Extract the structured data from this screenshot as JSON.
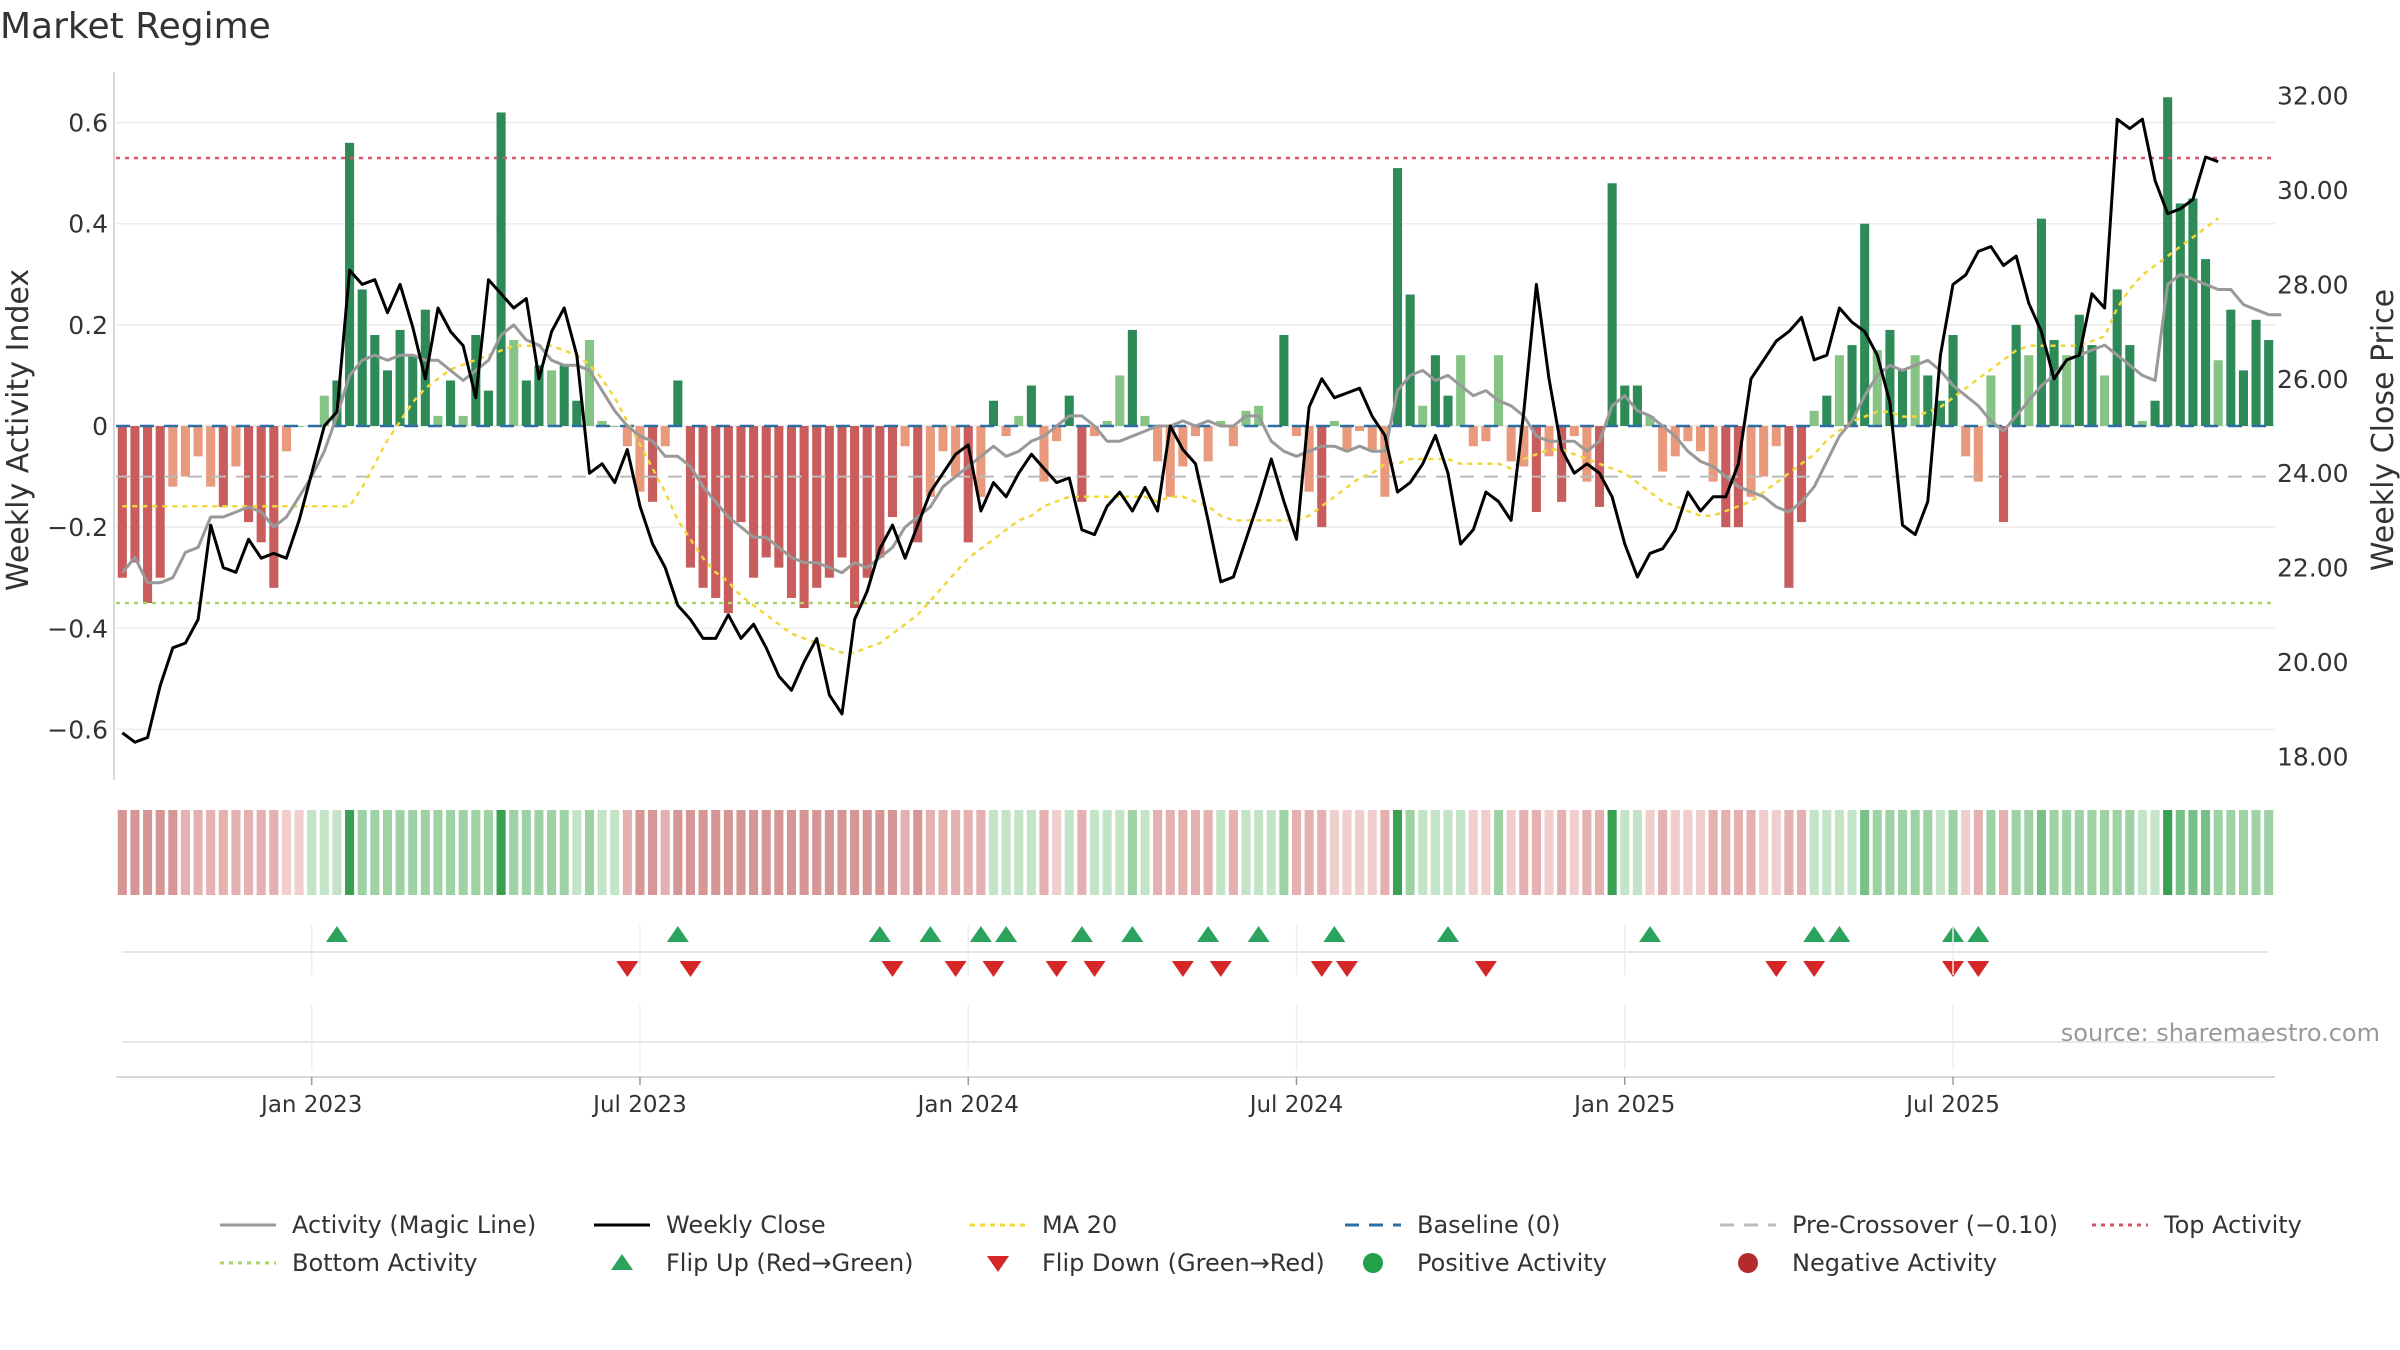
{
  "chart_data": {
    "type": "bar",
    "title": "Market Regime",
    "ylabel": "Weekly Activity Index",
    "y2label": "Weekly Close Price",
    "source": "source: sharemaestro.com",
    "ylim": [
      -0.7,
      0.7
    ],
    "y2lim": [
      17.5,
      32.5
    ],
    "yticks": [
      {
        "value": 0.6,
        "label": "0.6"
      },
      {
        "value": 0.4,
        "label": "0.4"
      },
      {
        "value": 0.2,
        "label": "0.2"
      },
      {
        "value": 0,
        "label": "0"
      },
      {
        "value": -0.2,
        "label": "−0.2"
      },
      {
        "value": -0.4,
        "label": "−0.4"
      },
      {
        "value": -0.6,
        "label": "−0.6"
      }
    ],
    "y2ticks": [
      {
        "value": 32,
        "label": "32.00"
      },
      {
        "value": 30,
        "label": "30.00"
      },
      {
        "value": 28,
        "label": "28.00"
      },
      {
        "value": 26,
        "label": "26.00"
      },
      {
        "value": 24,
        "label": "24.00"
      },
      {
        "value": 22,
        "label": "22.00"
      },
      {
        "value": 20,
        "label": "20.00"
      },
      {
        "value": 18,
        "label": "18.00"
      }
    ],
    "xticks": [
      {
        "week": 15,
        "label": "Jan 2023"
      },
      {
        "week": 41,
        "label": "Jul 2023"
      },
      {
        "week": 67,
        "label": "Jan 2024"
      },
      {
        "week": 93,
        "label": "Jul 2024"
      },
      {
        "week": 119,
        "label": "Jan 2025"
      },
      {
        "week": 145,
        "label": "Jul 2025"
      }
    ],
    "thresholds": {
      "top": 0.53,
      "bottom": -0.35,
      "pre_crossover": -0.1,
      "baseline": 0
    },
    "activity": [
      -0.3,
      -0.27,
      -0.35,
      -0.3,
      -0.12,
      -0.1,
      -0.06,
      -0.12,
      -0.16,
      -0.08,
      -0.19,
      -0.23,
      -0.32,
      -0.05,
      0.0,
      0.0,
      0.06,
      0.09,
      0.56,
      0.27,
      0.18,
      0.11,
      0.19,
      0.14,
      0.23,
      0.02,
      0.09,
      0.02,
      0.18,
      0.07,
      0.62,
      0.17,
      0.09,
      0.12,
      0.11,
      0.12,
      0.05,
      0.17,
      0.01,
      0.0,
      -0.04,
      -0.13,
      -0.15,
      -0.04,
      0.09,
      -0.28,
      -0.32,
      -0.34,
      -0.37,
      -0.19,
      -0.3,
      -0.26,
      -0.28,
      -0.34,
      -0.36,
      -0.32,
      -0.3,
      -0.26,
      -0.36,
      -0.3,
      -0.26,
      -0.18,
      -0.04,
      -0.23,
      -0.14,
      -0.05,
      -0.1,
      -0.23,
      -0.14,
      0.05,
      -0.02,
      0.02,
      0.08,
      -0.11,
      -0.03,
      0.06,
      -0.15,
      -0.02,
      0.01,
      0.1,
      0.19,
      0.02,
      -0.07,
      -0.14,
      -0.08,
      -0.02,
      -0.07,
      0.01,
      -0.04,
      0.03,
      0.04,
      0.0,
      0.18,
      -0.02,
      -0.13,
      -0.2,
      0.01,
      -0.05,
      -0.01,
      -0.05,
      -0.14,
      0.51,
      0.26,
      0.04,
      0.14,
      0.06,
      0.14,
      -0.04,
      -0.03,
      0.14,
      -0.07,
      -0.08,
      -0.17,
      -0.06,
      -0.15,
      -0.02,
      -0.11,
      -0.16,
      0.48,
      0.08,
      0.08,
      0.02,
      -0.09,
      -0.06,
      -0.03,
      -0.05,
      -0.11,
      -0.2,
      -0.2,
      -0.14,
      -0.1,
      -0.04,
      -0.32,
      -0.19,
      0.03,
      0.06,
      0.14,
      0.16,
      0.4,
      0.15,
      0.19,
      0.11,
      0.14,
      0.1,
      0.05,
      0.18,
      -0.06,
      -0.11,
      0.1,
      -0.19,
      0.2,
      0.14,
      0.41,
      0.17,
      0.14,
      0.22,
      0.16,
      0.1,
      0.27,
      0.16,
      0.01,
      0.05,
      0.65,
      0.44,
      0.45,
      0.33,
      0.13,
      0.23,
      0.11,
      0.21,
      0.17
    ],
    "weekly_close": [
      18.5,
      18.3,
      18.4,
      19.5,
      20.3,
      20.4,
      20.9,
      22.9,
      22.0,
      21.9,
      22.6,
      22.2,
      22.3,
      22.2,
      23.0,
      24.0,
      25.0,
      25.3,
      28.3,
      28.0,
      28.1,
      27.4,
      28.0,
      27.1,
      26.0,
      27.5,
      27.0,
      26.7,
      25.6,
      28.1,
      27.8,
      27.5,
      27.7,
      26.0,
      27.0,
      27.5,
      26.5,
      24.0,
      24.2,
      23.8,
      24.5,
      23.3,
      22.5,
      22.0,
      21.2,
      20.9,
      20.5,
      20.5,
      21.0,
      20.5,
      20.8,
      20.3,
      19.7,
      19.4,
      20.0,
      20.5,
      19.3,
      18.9,
      20.9,
      21.5,
      22.4,
      22.9,
      22.2,
      22.9,
      23.6,
      24.0,
      24.4,
      24.6,
      23.2,
      23.8,
      23.5,
      24.0,
      24.4,
      24.1,
      23.8,
      23.9,
      22.8,
      22.7,
      23.3,
      23.6,
      23.2,
      23.7,
      23.2,
      25.0,
      24.5,
      24.2,
      23.0,
      21.7,
      21.8,
      22.6,
      23.4,
      24.3,
      23.4,
      22.6,
      25.4,
      26.0,
      25.6,
      25.7,
      25.8,
      25.2,
      24.8,
      23.6,
      23.8,
      24.2,
      24.8,
      24.0,
      22.5,
      22.8,
      23.6,
      23.4,
      23.0,
      25.3,
      28.0,
      26.0,
      24.5,
      24.0,
      24.2,
      24.0,
      23.5,
      22.5,
      21.8,
      22.3,
      22.4,
      22.8,
      23.6,
      23.2,
      23.5,
      23.5,
      24.2,
      26.0,
      26.4,
      26.8,
      27.0,
      27.3,
      26.4,
      26.5,
      27.5,
      27.2,
      27.0,
      26.5,
      25.5,
      22.9,
      22.7,
      23.4,
      26.5,
      28.0,
      28.2,
      28.7,
      28.8,
      28.4,
      28.6,
      27.6,
      27.0,
      26.0,
      26.4,
      26.5,
      27.8,
      27.5,
      31.5,
      31.3,
      31.5,
      30.2,
      29.5,
      29.6,
      29.8,
      30.7,
      30.6
    ],
    "magic_line": [
      -0.29,
      -0.26,
      -0.31,
      -0.31,
      -0.3,
      -0.25,
      -0.24,
      -0.18,
      -0.18,
      -0.17,
      -0.16,
      -0.17,
      -0.2,
      -0.18,
      -0.14,
      -0.1,
      -0.05,
      0.02,
      0.1,
      0.13,
      0.14,
      0.13,
      0.14,
      0.14,
      0.13,
      0.13,
      0.11,
      0.09,
      0.11,
      0.13,
      0.18,
      0.2,
      0.17,
      0.16,
      0.13,
      0.12,
      0.12,
      0.11,
      0.07,
      0.03,
      0.0,
      -0.02,
      -0.03,
      -0.06,
      -0.06,
      -0.08,
      -0.12,
      -0.15,
      -0.18,
      -0.2,
      -0.22,
      -0.22,
      -0.24,
      -0.26,
      -0.27,
      -0.27,
      -0.28,
      -0.29,
      -0.27,
      -0.28,
      -0.26,
      -0.24,
      -0.2,
      -0.18,
      -0.16,
      -0.12,
      -0.1,
      -0.08,
      -0.06,
      -0.04,
      -0.06,
      -0.05,
      -0.03,
      -0.02,
      0.0,
      0.02,
      0.02,
      0.0,
      -0.03,
      -0.03,
      -0.02,
      -0.01,
      0.0,
      0.0,
      0.01,
      0.0,
      0.01,
      0.0,
      0.0,
      0.02,
      0.02,
      -0.03,
      -0.05,
      -0.06,
      -0.05,
      -0.04,
      -0.04,
      -0.05,
      -0.04,
      -0.05,
      -0.05,
      0.07,
      0.1,
      0.11,
      0.09,
      0.1,
      0.08,
      0.06,
      0.07,
      0.05,
      0.04,
      0.02,
      -0.02,
      -0.03,
      -0.03,
      -0.03,
      -0.05,
      -0.03,
      0.04,
      0.06,
      0.03,
      0.02,
      0.0,
      -0.02,
      -0.05,
      -0.07,
      -0.08,
      -0.1,
      -0.12,
      -0.13,
      -0.14,
      -0.16,
      -0.17,
      -0.15,
      -0.12,
      -0.07,
      -0.02,
      0.01,
      0.06,
      0.1,
      0.12,
      0.11,
      0.12,
      0.13,
      0.11,
      0.08,
      0.06,
      0.04,
      0.01,
      -0.01,
      0.02,
      0.05,
      0.08,
      0.1,
      0.13,
      0.14,
      0.15,
      0.16,
      0.14,
      0.12,
      0.1,
      0.09,
      0.28,
      0.3,
      0.29,
      0.28,
      0.27,
      0.27,
      0.24,
      0.23,
      0.22,
      0.22
    ],
    "ma20": [
      23.3,
      23.3,
      23.3,
      23.3,
      23.3,
      23.3,
      23.3,
      23.3,
      23.3,
      23.3,
      23.3,
      23.3,
      23.3,
      23.3,
      23.3,
      23.3,
      23.3,
      23.3,
      23.3,
      23.7,
      24.2,
      24.7,
      25.1,
      25.5,
      25.8,
      26.0,
      26.2,
      26.3,
      26.4,
      26.5,
      26.6,
      26.7,
      26.7,
      26.7,
      26.7,
      26.6,
      26.5,
      26.3,
      26.0,
      25.6,
      25.1,
      24.6,
      24.1,
      23.6,
      23.0,
      22.6,
      22.2,
      21.9,
      21.7,
      21.4,
      21.2,
      21.0,
      20.8,
      20.6,
      20.5,
      20.4,
      20.3,
      20.2,
      20.2,
      20.3,
      20.4,
      20.6,
      20.8,
      21.0,
      21.3,
      21.6,
      21.9,
      22.2,
      22.4,
      22.6,
      22.8,
      23.0,
      23.1,
      23.3,
      23.4,
      23.5,
      23.5,
      23.5,
      23.5,
      23.5,
      23.5,
      23.5,
      23.4,
      23.5,
      23.5,
      23.4,
      23.3,
      23.1,
      23.0,
      23.0,
      23.0,
      23.0,
      23.0,
      23.0,
      23.1,
      23.3,
      23.5,
      23.7,
      23.9,
      24.0,
      24.2,
      24.2,
      24.3,
      24.3,
      24.3,
      24.3,
      24.2,
      24.2,
      24.2,
      24.2,
      24.1,
      24.3,
      24.4,
      24.5,
      24.5,
      24.4,
      24.3,
      24.2,
      24.1,
      24.0,
      23.8,
      23.6,
      23.4,
      23.3,
      23.2,
      23.1,
      23.1,
      23.2,
      23.3,
      23.4,
      23.6,
      23.8,
      24.0,
      24.2,
      24.4,
      24.7,
      24.9,
      25.1,
      25.2,
      25.3,
      25.3,
      25.2,
      25.2,
      25.3,
      25.4,
      25.6,
      25.8,
      26.0,
      26.2,
      26.4,
      26.6,
      26.7,
      26.7,
      26.7,
      26.7,
      26.7,
      26.8,
      26.9,
      27.5,
      27.9,
      28.2,
      28.4,
      28.6,
      28.8,
      29.0,
      29.2,
      29.4
    ],
    "regime_strip": [
      -0.35,
      -0.33,
      -0.35,
      -0.33,
      -0.32,
      -0.3,
      -0.3,
      -0.3,
      -0.28,
      -0.28,
      -0.27,
      -0.27,
      -0.28,
      -0.18,
      -0.08,
      0.1,
      0.12,
      0.14,
      0.6,
      0.25,
      0.25,
      0.25,
      0.28,
      0.25,
      0.28,
      0.22,
      0.25,
      0.22,
      0.28,
      0.25,
      0.62,
      0.25,
      0.22,
      0.22,
      0.22,
      0.22,
      0.18,
      0.22,
      0.18,
      0.15,
      -0.3,
      -0.32,
      -0.32,
      -0.3,
      -0.32,
      -0.35,
      -0.35,
      -0.35,
      -0.36,
      -0.34,
      -0.35,
      -0.34,
      -0.34,
      -0.35,
      -0.36,
      -0.35,
      -0.35,
      -0.34,
      -0.36,
      -0.35,
      -0.34,
      -0.33,
      -0.3,
      -0.33,
      -0.22,
      -0.2,
      -0.22,
      -0.25,
      -0.22,
      0.14,
      0.12,
      0.14,
      0.15,
      -0.22,
      -0.18,
      0.14,
      -0.22,
      0.15,
      0.14,
      0.18,
      0.25,
      0.15,
      -0.22,
      -0.25,
      -0.22,
      -0.2,
      -0.22,
      0.14,
      -0.2,
      0.15,
      0.18,
      0.18,
      0.25,
      -0.2,
      -0.25,
      -0.28,
      -0.12,
      -0.18,
      -0.12,
      -0.15,
      -0.22,
      0.62,
      0.28,
      0.14,
      0.18,
      0.15,
      0.18,
      -0.18,
      -0.15,
      0.22,
      -0.18,
      -0.2,
      -0.22,
      -0.18,
      -0.2,
      -0.18,
      -0.2,
      -0.22,
      0.62,
      0.14,
      0.15,
      -0.15,
      -0.2,
      -0.18,
      -0.15,
      -0.18,
      -0.2,
      -0.22,
      -0.22,
      -0.2,
      -0.18,
      -0.18,
      -0.25,
      -0.22,
      0.14,
      0.15,
      0.18,
      0.18,
      0.35,
      0.22,
      0.25,
      0.22,
      0.22,
      0.22,
      0.18,
      0.25,
      -0.18,
      -0.22,
      0.22,
      -0.22,
      0.25,
      0.22,
      0.4,
      0.25,
      0.22,
      0.25,
      0.22,
      0.2,
      0.28,
      0.22,
      0.15,
      0.18,
      0.65,
      0.5,
      0.5,
      0.4,
      0.25,
      0.3,
      0.25,
      0.28,
      0.25
    ],
    "flips_up": [
      17,
      44,
      60,
      64,
      68,
      70,
      76,
      80,
      86,
      90,
      96,
      105,
      121,
      134,
      136,
      145,
      147
    ],
    "flips_down": [
      40,
      45,
      61,
      66,
      69,
      74,
      77,
      84,
      87,
      95,
      97,
      108,
      131,
      134,
      145,
      147
    ],
    "legend": [
      {
        "label": "Activity (Magic Line)",
        "type": "line",
        "color": "#999999",
        "dash": "none"
      },
      {
        "label": "Weekly Close",
        "type": "line",
        "color": "#000000",
        "dash": "none"
      },
      {
        "label": "MA 20",
        "type": "line",
        "color": "#f2d73c",
        "dash": "5,5"
      },
      {
        "label": "Baseline (0)",
        "type": "line",
        "color": "#2b6ea3",
        "dash": "14,10"
      },
      {
        "label": "Pre-Crossover (−0.10)",
        "type": "line",
        "color": "#bbbbbb",
        "dash": "14,10"
      },
      {
        "label": "Top Activity",
        "type": "line",
        "color": "#d9536a",
        "dash": "4,5"
      },
      {
        "label": "Bottom Activity",
        "type": "line",
        "color": "#a9d36a",
        "dash": "4,5"
      },
      {
        "label": "Flip Up (Red→Green)",
        "type": "tri-up",
        "color": "#2ca25f"
      },
      {
        "label": "Flip Down (Green→Red)",
        "type": "tri-down",
        "color": "#d62728"
      },
      {
        "label": "Positive Activity",
        "type": "dot",
        "color": "#23a04a"
      },
      {
        "label": "Negative Activity",
        "type": "dot",
        "color": "#b52a2a"
      }
    ],
    "colors": {
      "pos_strong": "#2e8b57",
      "pos_light": "#86c486",
      "neg_strong": "#c95d5d",
      "neg_light": "#ea9a7c",
      "line_magic": "#999999",
      "line_close": "#000000",
      "line_ma": "#f2d73c",
      "baseline": "#2b6ea3",
      "pre": "#bbbbbb",
      "top": "#d9536a",
      "bottom": "#a9d36a",
      "flip_up": "#2ca25f",
      "flip_down": "#d62728"
    }
  }
}
